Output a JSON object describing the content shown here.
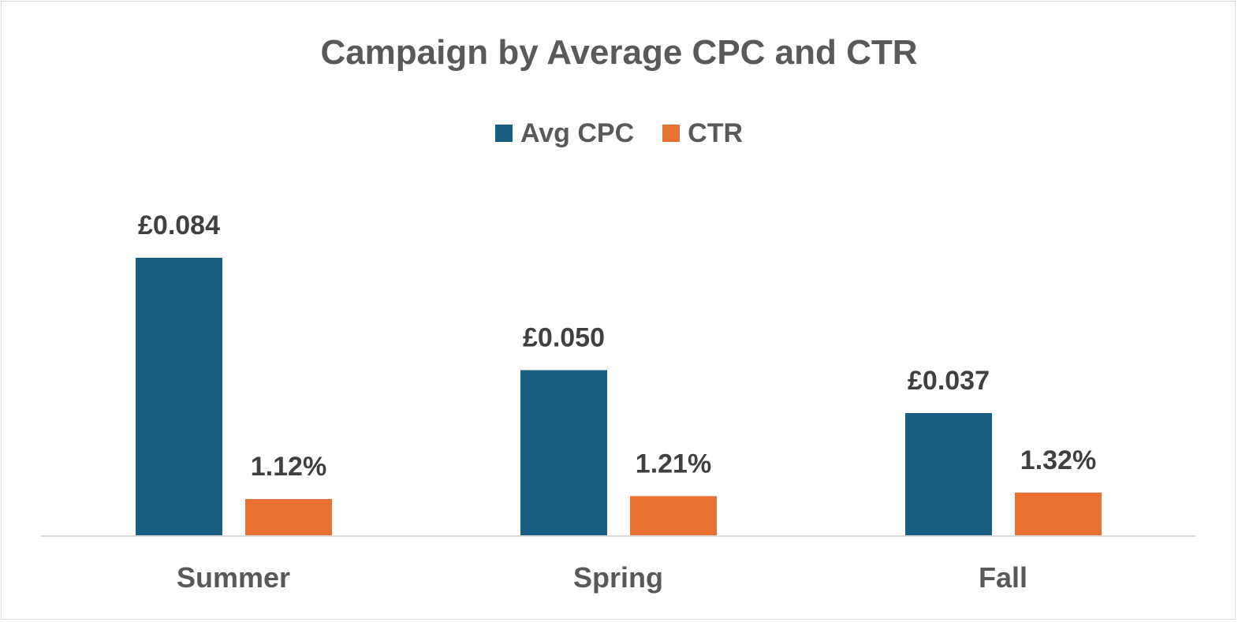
{
  "chart_data": {
    "type": "bar",
    "title": "Campaign by Average CPC and CTR",
    "categories": [
      "Summer",
      "Spring",
      "Fall"
    ],
    "series": [
      {
        "name": "Avg CPC",
        "color": "#175e82",
        "values": [
          0.084,
          0.05,
          0.037
        ],
        "labels": [
          "£0.084",
          "£0.050",
          "£0.037"
        ]
      },
      {
        "name": "CTR",
        "color": "#e97132",
        "values": [
          1.12,
          1.21,
          1.32
        ],
        "labels": [
          "1.12%",
          "1.21%",
          "1.32%"
        ]
      }
    ],
    "legend_position": "top",
    "grid": false,
    "xlabel": "",
    "ylabel": ""
  }
}
